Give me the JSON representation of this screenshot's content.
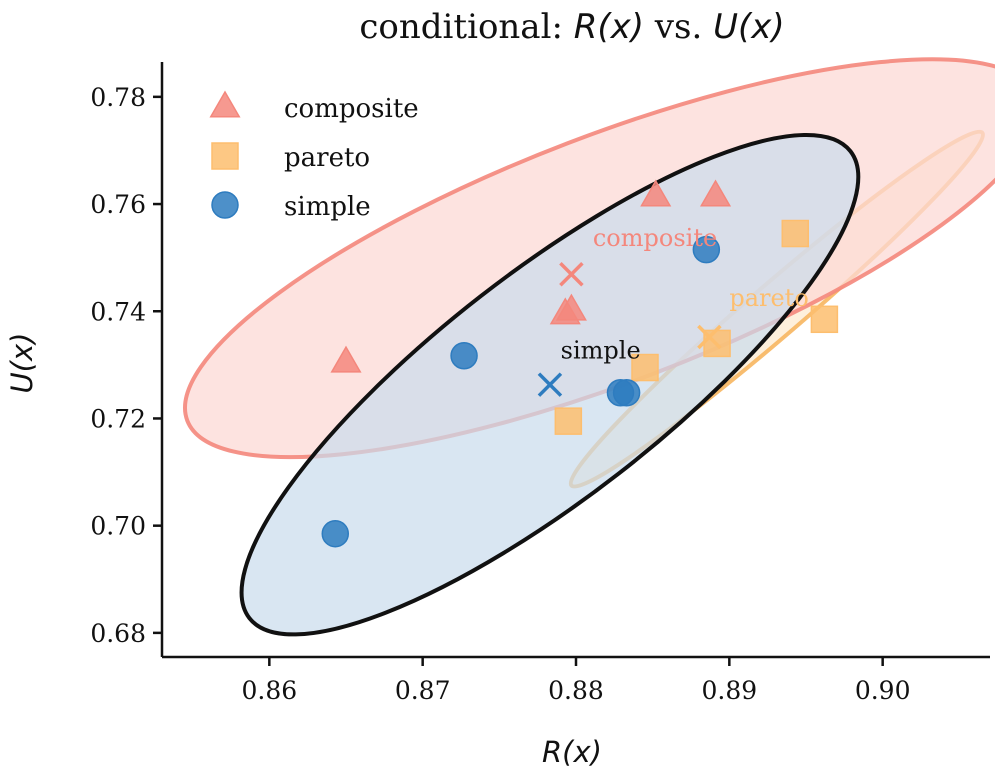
{
  "chart_data": {
    "type": "scatter",
    "title": {
      "prefix": "conditional: ",
      "x_symbol": "R(x)",
      "middle": " vs. ",
      "y_symbol": "U(x)"
    },
    "xlabel": "R(x)",
    "ylabel": "U(x)",
    "xlim": [
      0.853,
      0.907
    ],
    "ylim": [
      0.6755,
      0.7865
    ],
    "xticks": [
      {
        "value": 0.86,
        "label": "0.86"
      },
      {
        "value": 0.87,
        "label": "0.87"
      },
      {
        "value": 0.88,
        "label": "0.88"
      },
      {
        "value": 0.89,
        "label": "0.89"
      },
      {
        "value": 0.9,
        "label": "0.90"
      }
    ],
    "yticks": [
      {
        "value": 0.68,
        "label": "0.68"
      },
      {
        "value": 0.7,
        "label": "0.70"
      },
      {
        "value": 0.72,
        "label": "0.72"
      },
      {
        "value": 0.74,
        "label": "0.74"
      },
      {
        "value": 0.76,
        "label": "0.76"
      },
      {
        "value": 0.78,
        "label": "0.78"
      }
    ],
    "grid": false,
    "legend_position": "top-left",
    "series": [
      {
        "name": "composite",
        "marker": "triangle",
        "color": "#f4877c",
        "points": [
          {
            "x": 0.865,
            "y": 0.7305
          },
          {
            "x": 0.8793,
            "y": 0.7395
          },
          {
            "x": 0.8797,
            "y": 0.7402
          },
          {
            "x": 0.8852,
            "y": 0.7615
          },
          {
            "x": 0.8891,
            "y": 0.7615
          }
        ],
        "mean": {
          "x": 0.8797,
          "y": 0.7469
        },
        "annotation": "composite",
        "ellipse": {
          "center": {
            "x": 0.8823,
            "y": 0.7499
          },
          "corners": [
            {
              "x": 0.8546,
              "y": 0.7196
            },
            {
              "x": 0.9099,
              "y": 0.7802
            },
            {
              "x": 0.8712,
              "y": 0.7623
            }
          ]
        }
      },
      {
        "name": "pareto",
        "marker": "square",
        "color": "#fdbe6e",
        "points": [
          {
            "x": 0.8795,
            "y": 0.7195
          },
          {
            "x": 0.8845,
            "y": 0.7295
          },
          {
            "x": 0.8892,
            "y": 0.734
          },
          {
            "x": 0.8943,
            "y": 0.7545
          },
          {
            "x": 0.8962,
            "y": 0.7385
          }
        ],
        "mean": {
          "x": 0.8887,
          "y": 0.7352
        },
        "annotation": "pareto",
        "ellipse": {
          "center": {
            "x": 0.8931,
            "y": 0.7404
          },
          "corners": [
            {
              "x": 0.8798,
              "y": 0.7074
            },
            {
              "x": 0.9066,
              "y": 0.7732
            },
            {
              "x": 0.8899,
              "y": 0.7389
            }
          ]
        }
      },
      {
        "name": "simple",
        "marker": "circle",
        "color": "#2e7cbf",
        "points": [
          {
            "x": 0.8643,
            "y": 0.6985
          },
          {
            "x": 0.8727,
            "y": 0.7317
          },
          {
            "x": 0.8829,
            "y": 0.7248
          },
          {
            "x": 0.8833,
            "y": 0.7248
          },
          {
            "x": 0.8885,
            "y": 0.7515
          }
        ],
        "mean": {
          "x": 0.8783,
          "y": 0.7263
        },
        "annotation": "simple",
        "ellipse": {
          "center": {
            "x": 0.8783,
            "y": 0.7263
          },
          "corners": [
            {
              "x": 0.8585,
              "y": 0.6835
            },
            {
              "x": 0.8977,
              "y": 0.7706
            },
            {
              "x": 0.8691,
              "y": 0.7324
            }
          ]
        }
      }
    ]
  }
}
